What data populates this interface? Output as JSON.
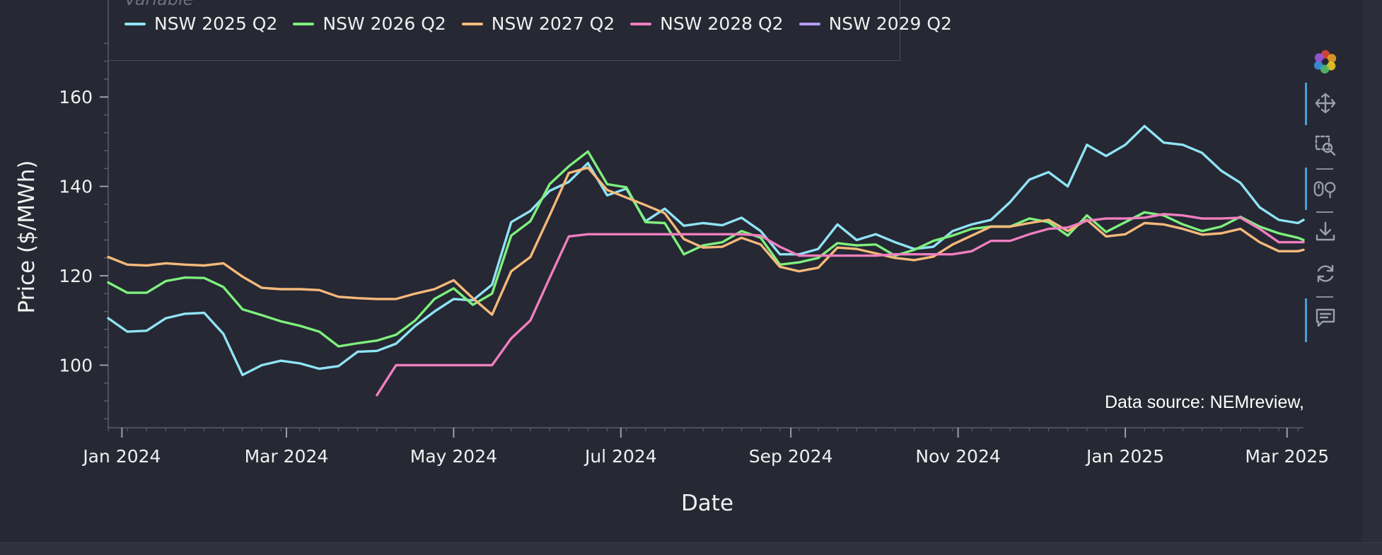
{
  "legend": {
    "title": "Variable",
    "items": [
      {
        "label": "NSW 2025 Q2",
        "color": "#8fe3f5"
      },
      {
        "label": "NSW 2026 Q2",
        "color": "#7ef07e"
      },
      {
        "label": "NSW 2027 Q2",
        "color": "#f5b97a"
      },
      {
        "label": "NSW 2028 Q2",
        "color": "#f07ec0"
      },
      {
        "label": "NSW 2029 Q2",
        "color": "#b79af5"
      }
    ]
  },
  "source_note": "Data source: NEMreview,",
  "toolbar": {
    "items": [
      "pan-icon",
      "box-zoom-icon",
      "wheel-zoom-icon",
      "save-icon",
      "reset-icon",
      "hover-icon"
    ]
  },
  "chart_data": {
    "type": "line",
    "xlabel": "Date",
    "ylabel": "Price ($/MWh)",
    "x_ticks": [
      "Jan 2024",
      "Mar 2024",
      "May 2024",
      "Jul 2024",
      "Sep 2024",
      "Nov 2024",
      "Jan 2025",
      "Mar 2025"
    ],
    "x_tick_dates": [
      "2024-01-01",
      "2024-03-01",
      "2024-05-01",
      "2024-07-01",
      "2024-09-01",
      "2024-11-01",
      "2025-01-01",
      "2025-03-01"
    ],
    "y_ticks": [
      100,
      120,
      140,
      160
    ],
    "ylim": [
      86,
      173
    ],
    "xlim": [
      "2023-12-27",
      "2025-03-07"
    ],
    "grid": false,
    "legend_position": "top-left",
    "series": [
      {
        "name": "NSW 2025 Q2",
        "color": "#8fe3f5",
        "points": [
          [
            "2023-12-27",
            110.5
          ],
          [
            "2024-01-03",
            107.5
          ],
          [
            "2024-01-10",
            107.7
          ],
          [
            "2024-01-17",
            110.5
          ],
          [
            "2024-01-24",
            111.5
          ],
          [
            "2024-01-31",
            111.7
          ],
          [
            "2024-02-07",
            107
          ],
          [
            "2024-02-14",
            97.8
          ],
          [
            "2024-02-21",
            100
          ],
          [
            "2024-02-28",
            101
          ],
          [
            "2024-03-06",
            100.4
          ],
          [
            "2024-03-13",
            99.2
          ],
          [
            "2024-03-20",
            99.8
          ],
          [
            "2024-03-27",
            103
          ],
          [
            "2024-04-03",
            103.2
          ],
          [
            "2024-04-10",
            104.8
          ],
          [
            "2024-04-17",
            108.8
          ],
          [
            "2024-04-24",
            112
          ],
          [
            "2024-05-01",
            114.8
          ],
          [
            "2024-05-08",
            114.5
          ],
          [
            "2024-05-15",
            118
          ],
          [
            "2024-05-22",
            132
          ],
          [
            "2024-05-29",
            134.5
          ],
          [
            "2024-06-05",
            139
          ],
          [
            "2024-06-12",
            141
          ],
          [
            "2024-06-19",
            145.2
          ],
          [
            "2024-06-26",
            138
          ],
          [
            "2024-07-03",
            139.5
          ],
          [
            "2024-07-10",
            132.2
          ],
          [
            "2024-07-17",
            135
          ],
          [
            "2024-07-24",
            131.2
          ],
          [
            "2024-07-31",
            131.8
          ],
          [
            "2024-08-07",
            131.3
          ],
          [
            "2024-08-14",
            133
          ],
          [
            "2024-08-21",
            130
          ],
          [
            "2024-08-28",
            124.8
          ],
          [
            "2024-09-04",
            124.8
          ],
          [
            "2024-09-11",
            126
          ],
          [
            "2024-09-18",
            131.5
          ],
          [
            "2024-09-25",
            128
          ],
          [
            "2024-10-02",
            129.3
          ],
          [
            "2024-10-09",
            127.5
          ],
          [
            "2024-10-16",
            126
          ],
          [
            "2024-10-23",
            126.5
          ],
          [
            "2024-10-30",
            130
          ],
          [
            "2024-11-06",
            131.5
          ],
          [
            "2024-11-13",
            132.5
          ],
          [
            "2024-11-20",
            136.5
          ],
          [
            "2024-11-27",
            141.5
          ],
          [
            "2024-12-04",
            143.2
          ],
          [
            "2024-12-11",
            140
          ],
          [
            "2024-12-18",
            149.3
          ],
          [
            "2024-12-25",
            146.8
          ],
          [
            "2025-01-01",
            149.3
          ],
          [
            "2025-01-08",
            153.5
          ],
          [
            "2025-01-15",
            149.8
          ],
          [
            "2025-01-22",
            149.3
          ],
          [
            "2025-01-29",
            147.5
          ],
          [
            "2025-02-05",
            143.5
          ],
          [
            "2025-02-12",
            140.8
          ],
          [
            "2025-02-19",
            135.3
          ],
          [
            "2025-02-26",
            132.5
          ],
          [
            "2025-03-05",
            131.8
          ],
          [
            "2025-03-07",
            132.5
          ]
        ]
      },
      {
        "name": "NSW 2026 Q2",
        "color": "#7ef07e",
        "points": [
          [
            "2023-12-27",
            118.5
          ],
          [
            "2024-01-03",
            116.2
          ],
          [
            "2024-01-10",
            116.2
          ],
          [
            "2024-01-17",
            118.8
          ],
          [
            "2024-01-24",
            119.6
          ],
          [
            "2024-01-31",
            119.5
          ],
          [
            "2024-02-07",
            117.5
          ],
          [
            "2024-02-14",
            112.5
          ],
          [
            "2024-02-21",
            111.2
          ],
          [
            "2024-02-28",
            109.8
          ],
          [
            "2024-03-06",
            108.8
          ],
          [
            "2024-03-13",
            107.5
          ],
          [
            "2024-03-20",
            104.2
          ],
          [
            "2024-03-27",
            104.9
          ],
          [
            "2024-04-03",
            105.5
          ],
          [
            "2024-04-10",
            106.8
          ],
          [
            "2024-04-17",
            110
          ],
          [
            "2024-04-24",
            114.8
          ],
          [
            "2024-05-01",
            117.2
          ],
          [
            "2024-05-08",
            113.5
          ],
          [
            "2024-05-15",
            116
          ],
          [
            "2024-05-22",
            129
          ],
          [
            "2024-05-29",
            132.2
          ],
          [
            "2024-06-05",
            140.5
          ],
          [
            "2024-06-12",
            144.5
          ],
          [
            "2024-06-19",
            147.8
          ],
          [
            "2024-06-26",
            140.5
          ],
          [
            "2024-07-03",
            139.8
          ],
          [
            "2024-07-10",
            132
          ],
          [
            "2024-07-17",
            131.8
          ],
          [
            "2024-07-24",
            124.8
          ],
          [
            "2024-07-31",
            126.8
          ],
          [
            "2024-08-07",
            127.5
          ],
          [
            "2024-08-14",
            130
          ],
          [
            "2024-08-21",
            128.5
          ],
          [
            "2024-08-28",
            122.5
          ],
          [
            "2024-09-04",
            123
          ],
          [
            "2024-09-11",
            124
          ],
          [
            "2024-09-18",
            127.3
          ],
          [
            "2024-09-25",
            126.8
          ],
          [
            "2024-10-02",
            127
          ],
          [
            "2024-10-09",
            124.5
          ],
          [
            "2024-10-16",
            125.8
          ],
          [
            "2024-10-23",
            127.8
          ],
          [
            "2024-10-30",
            129
          ],
          [
            "2024-11-06",
            130.5
          ],
          [
            "2024-11-13",
            131
          ],
          [
            "2024-11-20",
            131
          ],
          [
            "2024-11-27",
            132.8
          ],
          [
            "2024-12-04",
            132
          ],
          [
            "2024-12-11",
            129
          ],
          [
            "2024-12-18",
            133.5
          ],
          [
            "2024-12-25",
            129.8
          ],
          [
            "2025-01-01",
            132
          ],
          [
            "2025-01-08",
            134.2
          ],
          [
            "2025-01-15",
            133.5
          ],
          [
            "2025-01-22",
            131.5
          ],
          [
            "2025-01-29",
            130
          ],
          [
            "2025-02-05",
            131
          ],
          [
            "2025-02-12",
            133.2
          ],
          [
            "2025-02-19",
            131
          ],
          [
            "2025-02-26",
            129.5
          ],
          [
            "2025-03-05",
            128.5
          ],
          [
            "2025-03-07",
            128
          ]
        ]
      },
      {
        "name": "NSW 2027 Q2",
        "color": "#f5b97a",
        "points": [
          [
            "2023-12-27",
            124.2
          ],
          [
            "2024-01-03",
            122.5
          ],
          [
            "2024-01-10",
            122.3
          ],
          [
            "2024-01-17",
            122.8
          ],
          [
            "2024-01-24",
            122.5
          ],
          [
            "2024-01-31",
            122.3
          ],
          [
            "2024-02-07",
            122.8
          ],
          [
            "2024-02-14",
            119.8
          ],
          [
            "2024-02-21",
            117.3
          ],
          [
            "2024-02-28",
            117
          ],
          [
            "2024-03-06",
            117
          ],
          [
            "2024-03-13",
            116.8
          ],
          [
            "2024-03-20",
            115.3
          ],
          [
            "2024-03-27",
            115
          ],
          [
            "2024-04-03",
            114.8
          ],
          [
            "2024-04-10",
            114.8
          ],
          [
            "2024-04-17",
            116
          ],
          [
            "2024-04-24",
            117
          ],
          [
            "2024-05-01",
            119
          ],
          [
            "2024-05-08",
            115
          ],
          [
            "2024-05-15",
            111.3
          ],
          [
            "2024-05-22",
            121
          ],
          [
            "2024-05-29",
            124.2
          ],
          [
            "2024-06-05",
            133.5
          ],
          [
            "2024-06-12",
            143
          ],
          [
            "2024-06-19",
            144.2
          ],
          [
            "2024-06-26",
            139.2
          ],
          [
            "2024-07-03",
            137.5
          ],
          [
            "2024-07-10",
            135.8
          ],
          [
            "2024-07-17",
            134
          ],
          [
            "2024-07-24",
            128.2
          ],
          [
            "2024-07-31",
            126.3
          ],
          [
            "2024-08-07",
            126.5
          ],
          [
            "2024-08-14",
            128.5
          ],
          [
            "2024-08-21",
            127
          ],
          [
            "2024-08-28",
            122
          ],
          [
            "2024-09-04",
            121
          ],
          [
            "2024-09-11",
            121.8
          ],
          [
            "2024-09-18",
            126.3
          ],
          [
            "2024-09-25",
            126
          ],
          [
            "2024-10-02",
            125
          ],
          [
            "2024-10-09",
            124
          ],
          [
            "2024-10-16",
            123.5
          ],
          [
            "2024-10-23",
            124.3
          ],
          [
            "2024-10-30",
            127
          ],
          [
            "2024-11-06",
            129
          ],
          [
            "2024-11-13",
            131
          ],
          [
            "2024-11-20",
            131
          ],
          [
            "2024-11-27",
            131.8
          ],
          [
            "2024-12-04",
            132.5
          ],
          [
            "2024-12-11",
            130
          ],
          [
            "2024-12-18",
            132.5
          ],
          [
            "2024-12-25",
            128.8
          ],
          [
            "2025-01-01",
            129.3
          ],
          [
            "2025-01-08",
            131.8
          ],
          [
            "2025-01-15",
            131.5
          ],
          [
            "2025-01-22",
            130.5
          ],
          [
            "2025-01-29",
            129.2
          ],
          [
            "2025-02-05",
            129.5
          ],
          [
            "2025-02-12",
            130.5
          ],
          [
            "2025-02-19",
            127.5
          ],
          [
            "2025-02-26",
            125.5
          ],
          [
            "2025-03-05",
            125.5
          ],
          [
            "2025-03-07",
            125.8
          ]
        ]
      },
      {
        "name": "NSW 2028 Q2",
        "color": "#f07ec0",
        "points": [
          [
            "2024-04-03",
            93.3
          ],
          [
            "2024-04-10",
            100
          ],
          [
            "2024-04-17",
            100
          ],
          [
            "2024-04-24",
            100
          ],
          [
            "2024-05-01",
            100
          ],
          [
            "2024-05-08",
            100
          ],
          [
            "2024-05-15",
            100
          ],
          [
            "2024-05-22",
            106
          ],
          [
            "2024-05-29",
            110
          ],
          [
            "2024-06-05",
            119.5
          ],
          [
            "2024-06-12",
            128.8
          ],
          [
            "2024-06-19",
            129.3
          ],
          [
            "2024-06-26",
            129.3
          ],
          [
            "2024-07-03",
            129.3
          ],
          [
            "2024-07-10",
            129.3
          ],
          [
            "2024-07-17",
            129.3
          ],
          [
            "2024-07-24",
            129.3
          ],
          [
            "2024-07-31",
            129.3
          ],
          [
            "2024-08-07",
            129.3
          ],
          [
            "2024-08-14",
            129.3
          ],
          [
            "2024-08-21",
            129
          ],
          [
            "2024-08-28",
            126.5
          ],
          [
            "2024-09-04",
            124.5
          ],
          [
            "2024-09-11",
            124.5
          ],
          [
            "2024-09-18",
            124.5
          ],
          [
            "2024-09-25",
            124.5
          ],
          [
            "2024-10-02",
            124.5
          ],
          [
            "2024-10-09",
            124.8
          ],
          [
            "2024-10-16",
            124.8
          ],
          [
            "2024-10-23",
            124.8
          ],
          [
            "2024-10-30",
            124.8
          ],
          [
            "2024-11-06",
            125.5
          ],
          [
            "2024-11-13",
            127.8
          ],
          [
            "2024-11-20",
            127.8
          ],
          [
            "2024-11-27",
            129.3
          ],
          [
            "2024-12-04",
            130.5
          ],
          [
            "2024-12-11",
            130.8
          ],
          [
            "2024-12-18",
            132.3
          ],
          [
            "2024-12-25",
            132.8
          ],
          [
            "2025-01-01",
            132.8
          ],
          [
            "2025-01-08",
            133
          ],
          [
            "2025-01-15",
            133.8
          ],
          [
            "2025-01-22",
            133.5
          ],
          [
            "2025-01-29",
            132.8
          ],
          [
            "2025-02-05",
            132.8
          ],
          [
            "2025-02-12",
            133
          ],
          [
            "2025-02-19",
            130.5
          ],
          [
            "2025-02-26",
            127.5
          ],
          [
            "2025-03-05",
            127.5
          ],
          [
            "2025-03-07",
            127.5
          ]
        ]
      },
      {
        "name": "NSW 2029 Q2",
        "color": "#b79af5",
        "points": []
      }
    ]
  }
}
